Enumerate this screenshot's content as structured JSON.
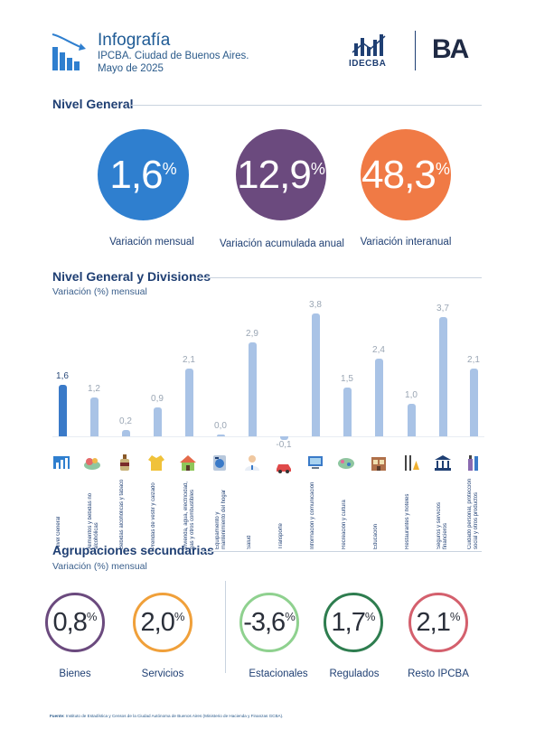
{
  "header": {
    "title": "Infografía",
    "subtitle": "IPCBA. Ciudad de Buenos Aires.",
    "date": "Mayo de 2025",
    "logo_idecba": "IDECBA",
    "logo_ba": "BA"
  },
  "nivel_general": {
    "title": "Nivel General",
    "indicators": [
      {
        "value": "1,6",
        "unit": "%",
        "label": "Variación mensual",
        "color": "#2f7fcf"
      },
      {
        "value": "12,9",
        "unit": "%",
        "label": "Variación acumulada anual",
        "color": "#6b4a7e"
      },
      {
        "value": "48,3",
        "unit": "%",
        "label": "Variación interanual",
        "color": "#f07a45"
      }
    ]
  },
  "divisiones": {
    "title": "Nivel General y Divisiones",
    "subtitle": "Variación (%) mensual"
  },
  "chart_data": {
    "type": "bar",
    "categories": [
      "Nivel General",
      "Alimentos y bebidas no alcohólicas",
      "Bebidas alcohólicas y tabaco",
      "Prendas de vestir y calzado",
      "Vivienda, agua, electricidad, gas y otros combustibles",
      "Equipamiento y mantenimiento del hogar",
      "Salud",
      "Transporte",
      "Información y comunicación",
      "Recreación y cultura",
      "Educación",
      "Restaurantes y hoteles",
      "Seguros y servicios financieros",
      "Cuidado personal, protección social y otros productos"
    ],
    "values": [
      1.6,
      1.2,
      0.2,
      0.9,
      2.1,
      0.0,
      2.9,
      -0.1,
      3.8,
      1.5,
      2.4,
      1.0,
      3.7,
      2.1
    ],
    "value_labels": [
      "1,6",
      "1,2",
      "0,2",
      "0,9",
      "2,1",
      "0,0",
      "2,9",
      "-0,1",
      "3,8",
      "1,5",
      "2,4",
      "1,0",
      "3,7",
      "2,1"
    ],
    "title": "Nivel General y Divisiones",
    "ylabel": "Variación (%) mensual",
    "highlight_color": "#3a7ac8",
    "bar_color": "#a9c3e6"
  },
  "agrupaciones": {
    "title": "Agrupaciones secundarias",
    "subtitle": "Variación (%) mensual",
    "items": [
      {
        "value": "0,8",
        "unit": "%",
        "label": "Bienes",
        "color": "#6b4a7e"
      },
      {
        "value": "2,0",
        "unit": "%",
        "label": "Servicios",
        "color": "#f0a03a"
      },
      {
        "value": "-3,6",
        "unit": "%",
        "label": "Estacionales",
        "color": "#8fd18f"
      },
      {
        "value": "1,7",
        "unit": "%",
        "label": "Regulados",
        "color": "#2e7d4f"
      },
      {
        "value": "2,1",
        "unit": "%",
        "label": "Resto IPCBA",
        "color": "#d4606d"
      }
    ]
  },
  "footer": {
    "label": "Fuente:",
    "text": "Instituto de Estadística y Censos de la Ciudad Autónoma de Buenos Aires (Ministerio de Hacienda y Finanzas GCBA)."
  }
}
